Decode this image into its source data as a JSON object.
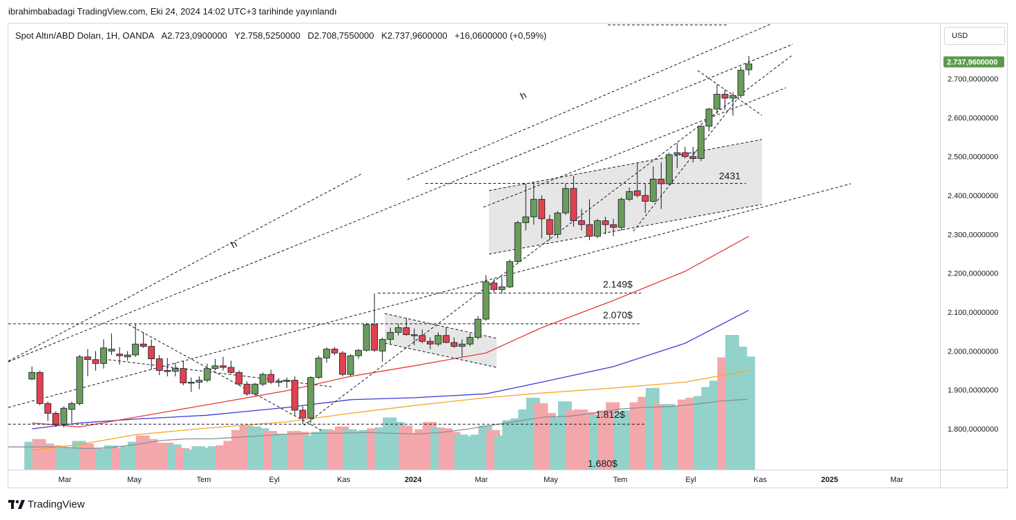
{
  "publish_line": "ibrahimbabadagi TradingView.com, Eki 24, 2024 14:02 UTC+3 tarihinde yayınlandı",
  "legend": {
    "symbol": "Spot Altın/ABD Doları, 1H, OANDA",
    "open": "A2.723,0900000",
    "high": "Y2.758,5250000",
    "low": "D2.708,7550000",
    "close": "K2.737,9600000",
    "change": "+16,0600000 (+0,59%)"
  },
  "currency": "USD",
  "last_price_label": "2.737,9600000",
  "footer": {
    "brand": "TradingView"
  },
  "colors": {
    "bull": "#6a9d5b",
    "bear": "#e0434f",
    "volume_bull": "#92d2cb",
    "volume_bear": "#f4a7aa",
    "ma_red": "#e53935",
    "ma_blue": "#3a3ad6",
    "ma_orange": "#f5a623",
    "ma_gray": "#8a8f99",
    "last_price_bg": "#5b9a4d"
  },
  "chart_data": {
    "type": "candlestick",
    "y_ticks": [
      "2.700,0000000",
      "2.600,0000000",
      "2.500,0000000",
      "2.400,0000000",
      "2.300,0000000",
      "2.200,0000000",
      "2.100,0000000",
      "2.000,0000000",
      "1.900,0000000",
      "1.800,0000000"
    ],
    "y_tick_values": [
      2700,
      2600,
      2500,
      2400,
      2300,
      2200,
      2100,
      2000,
      1900,
      1800
    ],
    "x_ticks": [
      {
        "label": "Mar",
        "date": "2023-03-01"
      },
      {
        "label": "May",
        "date": "2023-05-01"
      },
      {
        "label": "Tem",
        "date": "2023-07-01"
      },
      {
        "label": "Eyl",
        "date": "2023-09-01"
      },
      {
        "label": "Kas",
        "date": "2023-11-01"
      },
      {
        "label": "2024",
        "date": "2024-01-01",
        "bold": true
      },
      {
        "label": "Mar",
        "date": "2024-03-01"
      },
      {
        "label": "May",
        "date": "2024-05-01"
      },
      {
        "label": "Tem",
        "date": "2024-07-01"
      },
      {
        "label": "Eyl",
        "date": "2024-09-01"
      },
      {
        "label": "Kas",
        "date": "2024-11-01"
      },
      {
        "label": "2025",
        "date": "2025-01-01",
        "bold": true
      },
      {
        "label": "Mar",
        "date": "2025-03-01"
      }
    ],
    "candles": [
      {
        "date": "2023-01-31",
        "o": 1928,
        "h": 1960,
        "l": 1925,
        "c": 1945
      },
      {
        "date": "2023-02-07",
        "o": 1945,
        "h": 1950,
        "l": 1860,
        "c": 1865
      },
      {
        "date": "2023-02-14",
        "o": 1865,
        "h": 1870,
        "l": 1820,
        "c": 1840
      },
      {
        "date": "2023-02-21",
        "o": 1840,
        "h": 1845,
        "l": 1805,
        "c": 1812
      },
      {
        "date": "2023-02-28",
        "o": 1812,
        "h": 1858,
        "l": 1804,
        "c": 1853
      },
      {
        "date": "2023-03-07",
        "o": 1850,
        "h": 1870,
        "l": 1815,
        "c": 1865
      },
      {
        "date": "2023-03-14",
        "o": 1865,
        "h": 1990,
        "l": 1860,
        "c": 1985
      },
      {
        "date": "2023-03-21",
        "o": 1985,
        "h": 2005,
        "l": 1935,
        "c": 1978
      },
      {
        "date": "2023-03-28",
        "o": 1978,
        "h": 2000,
        "l": 1950,
        "c": 1968
      },
      {
        "date": "2023-04-04",
        "o": 1968,
        "h": 2030,
        "l": 1955,
        "c": 2008
      },
      {
        "date": "2023-04-11",
        "o": 2000,
        "h": 2045,
        "l": 1990,
        "c": 2005
      },
      {
        "date": "2023-04-18",
        "o": 1992,
        "h": 2010,
        "l": 1965,
        "c": 1988
      },
      {
        "date": "2023-04-25",
        "o": 1985,
        "h": 2000,
        "l": 1975,
        "c": 1990
      },
      {
        "date": "2023-05-02",
        "o": 1990,
        "h": 2070,
        "l": 1985,
        "c": 2018
      },
      {
        "date": "2023-05-09",
        "o": 2018,
        "h": 2048,
        "l": 2008,
        "c": 2012
      },
      {
        "date": "2023-05-16",
        "o": 2012,
        "h": 2030,
        "l": 1952,
        "c": 1980
      },
      {
        "date": "2023-05-23",
        "o": 1980,
        "h": 1990,
        "l": 1938,
        "c": 1950
      },
      {
        "date": "2023-05-30",
        "o": 1950,
        "h": 1982,
        "l": 1935,
        "c": 1948
      },
      {
        "date": "2023-06-06",
        "o": 1948,
        "h": 1970,
        "l": 1935,
        "c": 1955
      },
      {
        "date": "2023-06-13",
        "o": 1955,
        "h": 1975,
        "l": 1912,
        "c": 1918
      },
      {
        "date": "2023-06-20",
        "o": 1918,
        "h": 1932,
        "l": 1895,
        "c": 1920
      },
      {
        "date": "2023-06-27",
        "o": 1920,
        "h": 1935,
        "l": 1902,
        "c": 1925
      },
      {
        "date": "2023-07-04",
        "o": 1925,
        "h": 1968,
        "l": 1920,
        "c": 1955
      },
      {
        "date": "2023-07-11",
        "o": 1955,
        "h": 1980,
        "l": 1950,
        "c": 1962
      },
      {
        "date": "2023-07-18",
        "o": 1962,
        "h": 1985,
        "l": 1950,
        "c": 1958
      },
      {
        "date": "2023-07-25",
        "o": 1958,
        "h": 1975,
        "l": 1942,
        "c": 1945
      },
      {
        "date": "2023-08-01",
        "o": 1945,
        "h": 1950,
        "l": 1912,
        "c": 1915
      },
      {
        "date": "2023-08-08",
        "o": 1915,
        "h": 1922,
        "l": 1885,
        "c": 1890
      },
      {
        "date": "2023-08-15",
        "o": 1890,
        "h": 1918,
        "l": 1885,
        "c": 1915
      },
      {
        "date": "2023-08-22",
        "o": 1915,
        "h": 1945,
        "l": 1910,
        "c": 1940
      },
      {
        "date": "2023-08-29",
        "o": 1940,
        "h": 1952,
        "l": 1915,
        "c": 1920
      },
      {
        "date": "2023-09-05",
        "o": 1920,
        "h": 1930,
        "l": 1908,
        "c": 1922
      },
      {
        "date": "2023-09-12",
        "o": 1922,
        "h": 1932,
        "l": 1905,
        "c": 1925
      },
      {
        "date": "2023-09-19",
        "o": 1925,
        "h": 1935,
        "l": 1835,
        "c": 1848
      },
      {
        "date": "2023-09-26",
        "o": 1848,
        "h": 1858,
        "l": 1812,
        "c": 1828
      },
      {
        "date": "2023-10-03",
        "o": 1828,
        "h": 1935,
        "l": 1815,
        "c": 1932
      },
      {
        "date": "2023-10-10",
        "o": 1932,
        "h": 1988,
        "l": 1928,
        "c": 1982
      },
      {
        "date": "2023-10-17",
        "o": 1982,
        "h": 2010,
        "l": 1970,
        "c": 2005
      },
      {
        "date": "2023-10-24",
        "o": 2005,
        "h": 2010,
        "l": 1990,
        "c": 1995
      },
      {
        "date": "2023-10-31",
        "o": 1995,
        "h": 2000,
        "l": 1935,
        "c": 1940
      },
      {
        "date": "2023-11-07",
        "o": 1940,
        "h": 1992,
        "l": 1935,
        "c": 1988
      },
      {
        "date": "2023-11-14",
        "o": 1988,
        "h": 2005,
        "l": 1980,
        "c": 2002
      },
      {
        "date": "2023-11-21",
        "o": 2002,
        "h": 2072,
        "l": 1998,
        "c": 2068
      },
      {
        "date": "2023-11-28",
        "o": 2068,
        "h": 2148,
        "l": 1998,
        "c": 2002
      },
      {
        "date": "2023-12-05",
        "o": 2000,
        "h": 2035,
        "l": 1972,
        "c": 2030
      },
      {
        "date": "2023-12-12",
        "o": 2030,
        "h": 2060,
        "l": 2018,
        "c": 2048
      },
      {
        "date": "2023-12-19",
        "o": 2048,
        "h": 2070,
        "l": 2040,
        "c": 2060
      },
      {
        "date": "2023-12-26",
        "o": 2060,
        "h": 2085,
        "l": 2040,
        "c": 2042
      },
      {
        "date": "2024-01-02",
        "o": 2042,
        "h": 2058,
        "l": 2015,
        "c": 2040
      },
      {
        "date": "2024-01-09",
        "o": 2040,
        "h": 2055,
        "l": 2020,
        "c": 2025
      },
      {
        "date": "2024-01-16",
        "o": 2025,
        "h": 2035,
        "l": 2005,
        "c": 2018
      },
      {
        "date": "2024-01-23",
        "o": 2018,
        "h": 2048,
        "l": 2012,
        "c": 2040
      },
      {
        "date": "2024-01-30",
        "o": 2040,
        "h": 2062,
        "l": 2020,
        "c": 2022
      },
      {
        "date": "2024-02-06",
        "o": 2022,
        "h": 2035,
        "l": 2008,
        "c": 2012
      },
      {
        "date": "2024-02-13",
        "o": 2012,
        "h": 2030,
        "l": 1985,
        "c": 2018
      },
      {
        "date": "2024-02-20",
        "o": 2018,
        "h": 2045,
        "l": 2012,
        "c": 2035
      },
      {
        "date": "2024-02-27",
        "o": 2035,
        "h": 2090,
        "l": 2030,
        "c": 2082
      },
      {
        "date": "2024-03-05",
        "o": 2082,
        "h": 2195,
        "l": 2078,
        "c": 2178
      },
      {
        "date": "2024-03-12",
        "o": 2175,
        "h": 2185,
        "l": 2150,
        "c": 2158
      },
      {
        "date": "2024-03-19",
        "o": 2158,
        "h": 2190,
        "l": 2148,
        "c": 2165
      },
      {
        "date": "2024-03-26",
        "o": 2165,
        "h": 2235,
        "l": 2162,
        "c": 2230
      },
      {
        "date": "2024-04-02",
        "o": 2230,
        "h": 2335,
        "l": 2225,
        "c": 2330
      },
      {
        "date": "2024-04-09",
        "o": 2330,
        "h": 2430,
        "l": 2310,
        "c": 2345
      },
      {
        "date": "2024-04-16",
        "o": 2345,
        "h": 2430,
        "l": 2325,
        "c": 2390
      },
      {
        "date": "2024-04-23",
        "o": 2390,
        "h": 2400,
        "l": 2290,
        "c": 2340
      },
      {
        "date": "2024-04-30",
        "o": 2338,
        "h": 2350,
        "l": 2285,
        "c": 2300
      },
      {
        "date": "2024-05-07",
        "o": 2300,
        "h": 2360,
        "l": 2290,
        "c": 2355
      },
      {
        "date": "2024-05-14",
        "o": 2355,
        "h": 2430,
        "l": 2350,
        "c": 2418
      },
      {
        "date": "2024-05-21",
        "o": 2418,
        "h": 2450,
        "l": 2320,
        "c": 2335
      },
      {
        "date": "2024-05-28",
        "o": 2335,
        "h": 2365,
        "l": 2310,
        "c": 2325
      },
      {
        "date": "2024-06-04",
        "o": 2325,
        "h": 2390,
        "l": 2285,
        "c": 2295
      },
      {
        "date": "2024-06-11",
        "o": 2295,
        "h": 2340,
        "l": 2290,
        "c": 2335
      },
      {
        "date": "2024-06-18",
        "o": 2335,
        "h": 2345,
        "l": 2300,
        "c": 2325
      },
      {
        "date": "2024-06-25",
        "o": 2325,
        "h": 2340,
        "l": 2295,
        "c": 2318
      },
      {
        "date": "2024-07-02",
        "o": 2318,
        "h": 2395,
        "l": 2310,
        "c": 2390
      },
      {
        "date": "2024-07-09",
        "o": 2390,
        "h": 2420,
        "l": 2385,
        "c": 2410
      },
      {
        "date": "2024-07-16",
        "o": 2412,
        "h": 2484,
        "l": 2395,
        "c": 2400
      },
      {
        "date": "2024-07-23",
        "o": 2400,
        "h": 2430,
        "l": 2355,
        "c": 2385
      },
      {
        "date": "2024-07-30",
        "o": 2385,
        "h": 2475,
        "l": 2382,
        "c": 2442
      },
      {
        "date": "2024-08-06",
        "o": 2442,
        "h": 2485,
        "l": 2365,
        "c": 2430
      },
      {
        "date": "2024-08-13",
        "o": 2430,
        "h": 2510,
        "l": 2425,
        "c": 2505
      },
      {
        "date": "2024-08-20",
        "o": 2505,
        "h": 2535,
        "l": 2470,
        "c": 2510
      },
      {
        "date": "2024-08-27",
        "o": 2510,
        "h": 2525,
        "l": 2495,
        "c": 2500
      },
      {
        "date": "2024-09-03",
        "o": 2500,
        "h": 2525,
        "l": 2485,
        "c": 2495
      },
      {
        "date": "2024-09-10",
        "o": 2495,
        "h": 2580,
        "l": 2488,
        "c": 2578
      },
      {
        "date": "2024-09-17",
        "o": 2578,
        "h": 2625,
        "l": 2565,
        "c": 2622
      },
      {
        "date": "2024-09-24",
        "o": 2622,
        "h": 2685,
        "l": 2610,
        "c": 2660
      },
      {
        "date": "2024-10-01",
        "o": 2660,
        "h": 2672,
        "l": 2620,
        "c": 2650
      },
      {
        "date": "2024-10-08",
        "o": 2650,
        "h": 2665,
        "l": 2605,
        "c": 2657
      },
      {
        "date": "2024-10-15",
        "o": 2657,
        "h": 2730,
        "l": 2650,
        "c": 2722
      },
      {
        "date": "2024-10-22",
        "o": 2723.09,
        "h": 2758.525,
        "l": 2708.755,
        "c": 2737.96
      }
    ],
    "volume_bars": [
      0.31,
      0.34,
      0.29,
      0.27,
      0.24,
      0.25,
      0.32,
      0.29,
      0.24,
      0.23,
      0.27,
      0.24,
      0.26,
      0.31,
      0.38,
      0.34,
      0.3,
      0.3,
      0.28,
      0.24,
      0.22,
      0.26,
      0.24,
      0.26,
      0.27,
      0.32,
      0.44,
      0.49,
      0.48,
      0.46,
      0.43,
      0.4,
      0.39,
      0.43,
      0.42,
      0.38,
      0.42,
      0.45,
      0.44,
      0.48,
      0.45,
      0.43,
      0.44,
      0.46,
      0.47,
      0.58,
      0.53,
      0.49,
      0.41,
      0.45,
      0.53,
      0.47,
      0.46,
      0.42,
      0.39,
      0.37,
      0.39,
      0.49,
      0.44,
      0.38,
      0.55,
      0.57,
      0.67,
      0.8,
      0.74,
      0.63,
      0.58,
      0.76,
      0.66,
      0.67,
      0.64,
      0.61,
      0.66,
      0.75,
      0.64,
      0.66,
      0.75,
      0.81,
      0.91,
      0.73,
      0.73,
      0.7,
      0.78,
      0.8,
      0.82,
      0.92,
      0.99,
      1.25,
      1.5,
      1.37,
      1.26
    ],
    "ma_red": [
      {
        "date": "2023-01-31",
        "v": 1815
      },
      {
        "date": "2023-03-14",
        "v": 1805
      },
      {
        "date": "2023-05-02",
        "v": 1830
      },
      {
        "date": "2023-07-04",
        "v": 1862
      },
      {
        "date": "2023-09-12",
        "v": 1898
      },
      {
        "date": "2023-11-07",
        "v": 1935
      },
      {
        "date": "2024-01-02",
        "v": 1962
      },
      {
        "date": "2024-03-05",
        "v": 1995
      },
      {
        "date": "2024-04-23",
        "v": 2060
      },
      {
        "date": "2024-06-25",
        "v": 2130
      },
      {
        "date": "2024-08-27",
        "v": 2205
      },
      {
        "date": "2024-10-22",
        "v": 2295
      }
    ],
    "ma_blue": [
      {
        "date": "2023-01-31",
        "v": 1800
      },
      {
        "date": "2023-03-14",
        "v": 1815
      },
      {
        "date": "2023-05-02",
        "v": 1825
      },
      {
        "date": "2023-07-04",
        "v": 1835
      },
      {
        "date": "2023-09-12",
        "v": 1855
      },
      {
        "date": "2023-11-07",
        "v": 1875
      },
      {
        "date": "2024-01-02",
        "v": 1880
      },
      {
        "date": "2024-03-05",
        "v": 1890
      },
      {
        "date": "2024-04-23",
        "v": 1920
      },
      {
        "date": "2024-06-25",
        "v": 1960
      },
      {
        "date": "2024-08-27",
        "v": 2020
      },
      {
        "date": "2024-10-22",
        "v": 2105
      }
    ],
    "ma_orange": [
      {
        "date": "2023-01-31",
        "v": 1745
      },
      {
        "date": "2023-03-14",
        "v": 1760
      },
      {
        "date": "2023-05-02",
        "v": 1785
      },
      {
        "date": "2023-07-04",
        "v": 1802
      },
      {
        "date": "2023-09-12",
        "v": 1818
      },
      {
        "date": "2023-11-07",
        "v": 1840
      },
      {
        "date": "2024-01-02",
        "v": 1860
      },
      {
        "date": "2024-03-05",
        "v": 1880
      },
      {
        "date": "2024-04-23",
        "v": 1892
      },
      {
        "date": "2024-06-25",
        "v": 1905
      },
      {
        "date": "2024-08-27",
        "v": 1920
      },
      {
        "date": "2024-10-22",
        "v": 1950
      }
    ],
    "volume_ma": [
      0.28,
      0.28,
      0.28,
      0.26,
      0.27,
      0.31,
      0.36,
      0.38,
      0.38,
      0.4,
      0.42,
      0.44,
      0.45,
      0.45,
      0.46,
      0.45,
      0.44,
      0.46,
      0.5,
      0.55,
      0.6,
      0.65,
      0.66,
      0.7,
      0.75,
      0.77,
      0.78,
      0.81,
      0.85,
      0.87
    ],
    "horizontal_lines": [
      {
        "value": 2431,
        "label": "2431"
      },
      {
        "value": 2149,
        "label": "2.149$"
      },
      {
        "value": 2070,
        "label": "2.070$"
      },
      {
        "value": 1812,
        "label": "1.812$"
      }
    ],
    "extra_labels": [
      "1.680$",
      "h",
      "h"
    ]
  }
}
